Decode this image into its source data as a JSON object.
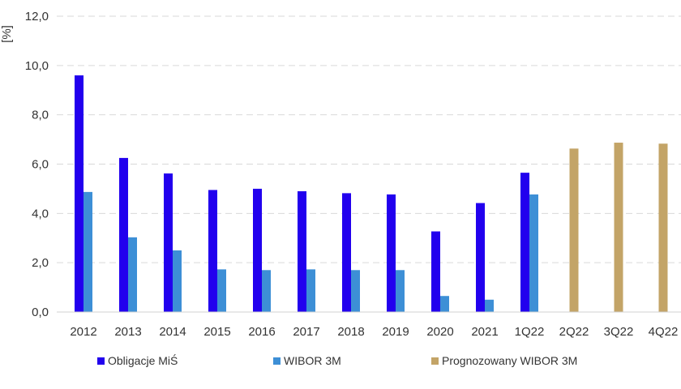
{
  "chart_data": {
    "type": "bar",
    "unit_label": "[%]",
    "categories": [
      "2012",
      "2013",
      "2014",
      "2015",
      "2016",
      "2017",
      "2018",
      "2019",
      "2020",
      "2021",
      "1Q22",
      "2Q22",
      "3Q22",
      "4Q22"
    ],
    "ylim": [
      0,
      12
    ],
    "yticks": [
      "0,0",
      "2,0",
      "4,0",
      "6,0",
      "8,0",
      "10,0",
      "12,0"
    ],
    "grid": true,
    "legend_position": "bottom",
    "series": [
      {
        "name": "Obligacje MiŚ",
        "color": "#2200ee",
        "values": [
          9.6,
          6.25,
          5.62,
          4.95,
          5.0,
          4.9,
          4.82,
          4.77,
          3.27,
          4.42,
          5.65,
          null,
          null,
          null
        ]
      },
      {
        "name": "WIBOR 3M",
        "color": "#3d8fd6",
        "values": [
          4.87,
          3.03,
          2.5,
          1.73,
          1.7,
          1.73,
          1.7,
          1.7,
          0.65,
          0.5,
          4.77,
          null,
          null,
          null
        ]
      },
      {
        "name": "Prognozowany WIBOR 3M",
        "color": "#c3a467",
        "values": [
          null,
          null,
          null,
          null,
          null,
          null,
          null,
          null,
          null,
          null,
          null,
          6.63,
          6.87,
          6.83
        ]
      }
    ]
  }
}
